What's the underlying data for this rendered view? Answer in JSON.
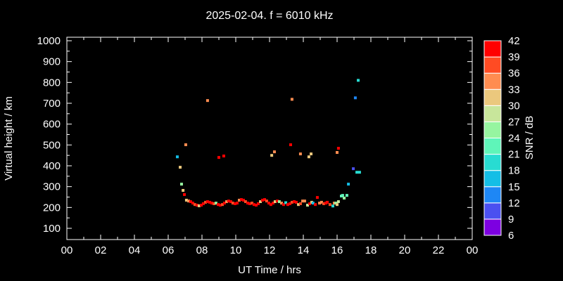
{
  "title": "2025-02-04. f = 6010 kHz",
  "axes": {
    "x_label": "UT Time / hrs",
    "y_label": "Virtual height / km",
    "x_tick_labels": [
      "00",
      "02",
      "04",
      "06",
      "08",
      "10",
      "12",
      "14",
      "16",
      "18",
      "20",
      "22",
      "00"
    ],
    "y_tick_labels": [
      "100",
      "200",
      "300",
      "400",
      "500",
      "600",
      "700",
      "800",
      "900",
      "1000"
    ]
  },
  "colorbar": {
    "label": "SNR / dB",
    "tick_values": [
      42,
      39,
      36,
      33,
      30,
      27,
      24,
      21,
      18,
      15,
      12,
      9,
      6
    ],
    "min": 6,
    "max": 42,
    "step": 3,
    "bin_colors_low_to_high": [
      "#7d00e1",
      "#4b50f0",
      "#1e87f5",
      "#14bee6",
      "#28dcd2",
      "#5ff5b9",
      "#96f5a0",
      "#c8e69b",
      "#ebc87d",
      "#ff8c50",
      "#ff4b23",
      "#ff0000"
    ]
  },
  "colors": {
    "background": "#000000",
    "axis": "#ffffff",
    "text": "#ffffff"
  },
  "chart_data": {
    "type": "scatter",
    "title": "2025-02-04. f = 6010 kHz",
    "xlabel": "UT Time / hrs",
    "ylabel": "Virtual height / km",
    "xlim": [
      0,
      24
    ],
    "ylim": [
      100,
      1000
    ],
    "x_major_step_hrs": 2,
    "x_minor_step_hrs": 1,
    "y_major_step_km": 100,
    "y_minor_step_km": 50,
    "grid": false,
    "legend": "colorbar-right",
    "colorbar": {
      "label": "SNR / dB",
      "min": 6,
      "max": 42,
      "step": 3
    },
    "point_format": [
      "time_hrs",
      "height_km",
      "snr_db"
    ],
    "points": [
      [
        6.54,
        443,
        17
      ],
      [
        6.71,
        393,
        32
      ],
      [
        6.79,
        312,
        26
      ],
      [
        6.88,
        282,
        32
      ],
      [
        6.96,
        262,
        41
      ],
      [
        7.04,
        501,
        35
      ],
      [
        7.08,
        235,
        32
      ],
      [
        7.21,
        231,
        35
      ],
      [
        7.33,
        228,
        41
      ],
      [
        7.46,
        221,
        41
      ],
      [
        7.58,
        214,
        38
      ],
      [
        7.71,
        211,
        41
      ],
      [
        7.83,
        208,
        32
      ],
      [
        7.96,
        211,
        41
      ],
      [
        8.08,
        218,
        41
      ],
      [
        8.21,
        225,
        38
      ],
      [
        8.33,
        228,
        41
      ],
      [
        8.46,
        225,
        41
      ],
      [
        8.58,
        221,
        41
      ],
      [
        8.71,
        218,
        38
      ],
      [
        8.83,
        221,
        26
      ],
      [
        8.96,
        214,
        41
      ],
      [
        9.08,
        211,
        41
      ],
      [
        9.21,
        214,
        38
      ],
      [
        9.33,
        221,
        41
      ],
      [
        9.46,
        228,
        35
      ],
      [
        9.58,
        231,
        41
      ],
      [
        9.71,
        228,
        41
      ],
      [
        9.83,
        221,
        38
      ],
      [
        9.96,
        218,
        41
      ],
      [
        10.08,
        221,
        41
      ],
      [
        10.21,
        235,
        35
      ],
      [
        10.33,
        238,
        41
      ],
      [
        10.46,
        235,
        41
      ],
      [
        10.58,
        228,
        38
      ],
      [
        10.71,
        221,
        41
      ],
      [
        10.83,
        218,
        41
      ],
      [
        10.96,
        221,
        38
      ],
      [
        11.08,
        214,
        41
      ],
      [
        11.21,
        211,
        41
      ],
      [
        11.33,
        218,
        41
      ],
      [
        11.46,
        228,
        32
      ],
      [
        11.58,
        235,
        41
      ],
      [
        11.71,
        238,
        41
      ],
      [
        11.83,
        231,
        38
      ],
      [
        11.96,
        221,
        41
      ],
      [
        12.08,
        214,
        41
      ],
      [
        12.21,
        221,
        41
      ],
      [
        12.33,
        228,
        32
      ],
      [
        12.46,
        231,
        41
      ],
      [
        12.58,
        228,
        26
      ],
      [
        12.71,
        221,
        35
      ],
      [
        12.83,
        214,
        41
      ],
      [
        12.96,
        223,
        20
      ],
      [
        13.08,
        214,
        41
      ],
      [
        13.21,
        218,
        41
      ],
      [
        13.33,
        225,
        38
      ],
      [
        13.46,
        228,
        41
      ],
      [
        13.58,
        225,
        41
      ],
      [
        13.71,
        214,
        32
      ],
      [
        13.83,
        218,
        38
      ],
      [
        13.96,
        231,
        35
      ],
      [
        14.08,
        231,
        35
      ],
      [
        14.25,
        211,
        29
      ],
      [
        14.38,
        218,
        41
      ],
      [
        14.5,
        225,
        32
      ],
      [
        14.58,
        221,
        17
      ],
      [
        14.71,
        214,
        41
      ],
      [
        14.83,
        248,
        41
      ],
      [
        14.96,
        221,
        35
      ],
      [
        15.08,
        225,
        35
      ],
      [
        15.21,
        218,
        38
      ],
      [
        15.33,
        221,
        41
      ],
      [
        15.42,
        225,
        41
      ],
      [
        15.58,
        214,
        38
      ],
      [
        15.75,
        207,
        20
      ],
      [
        15.83,
        221,
        35
      ],
      [
        15.92,
        221,
        26
      ],
      [
        16.0,
        214,
        32
      ],
      [
        16.08,
        228,
        29
      ],
      [
        16.25,
        255,
        23
      ],
      [
        16.33,
        258,
        23
      ],
      [
        16.42,
        245,
        26
      ],
      [
        16.58,
        258,
        23
      ],
      [
        16.67,
        312,
        17
      ],
      [
        16.96,
        386,
        11
      ],
      [
        17.17,
        369,
        20
      ],
      [
        17.33,
        369,
        20
      ],
      [
        8.33,
        713,
        35
      ],
      [
        9.0,
        440,
        41
      ],
      [
        9.29,
        447,
        41
      ],
      [
        12.13,
        450,
        32
      ],
      [
        12.29,
        467,
        35
      ],
      [
        13.25,
        501,
        41
      ],
      [
        13.33,
        719,
        35
      ],
      [
        13.83,
        457,
        35
      ],
      [
        14.33,
        443,
        32
      ],
      [
        14.46,
        457,
        32
      ],
      [
        16.0,
        464,
        35
      ],
      [
        16.08,
        484,
        41
      ],
      [
        17.08,
        726,
        14
      ],
      [
        17.25,
        810,
        20
      ]
    ]
  }
}
